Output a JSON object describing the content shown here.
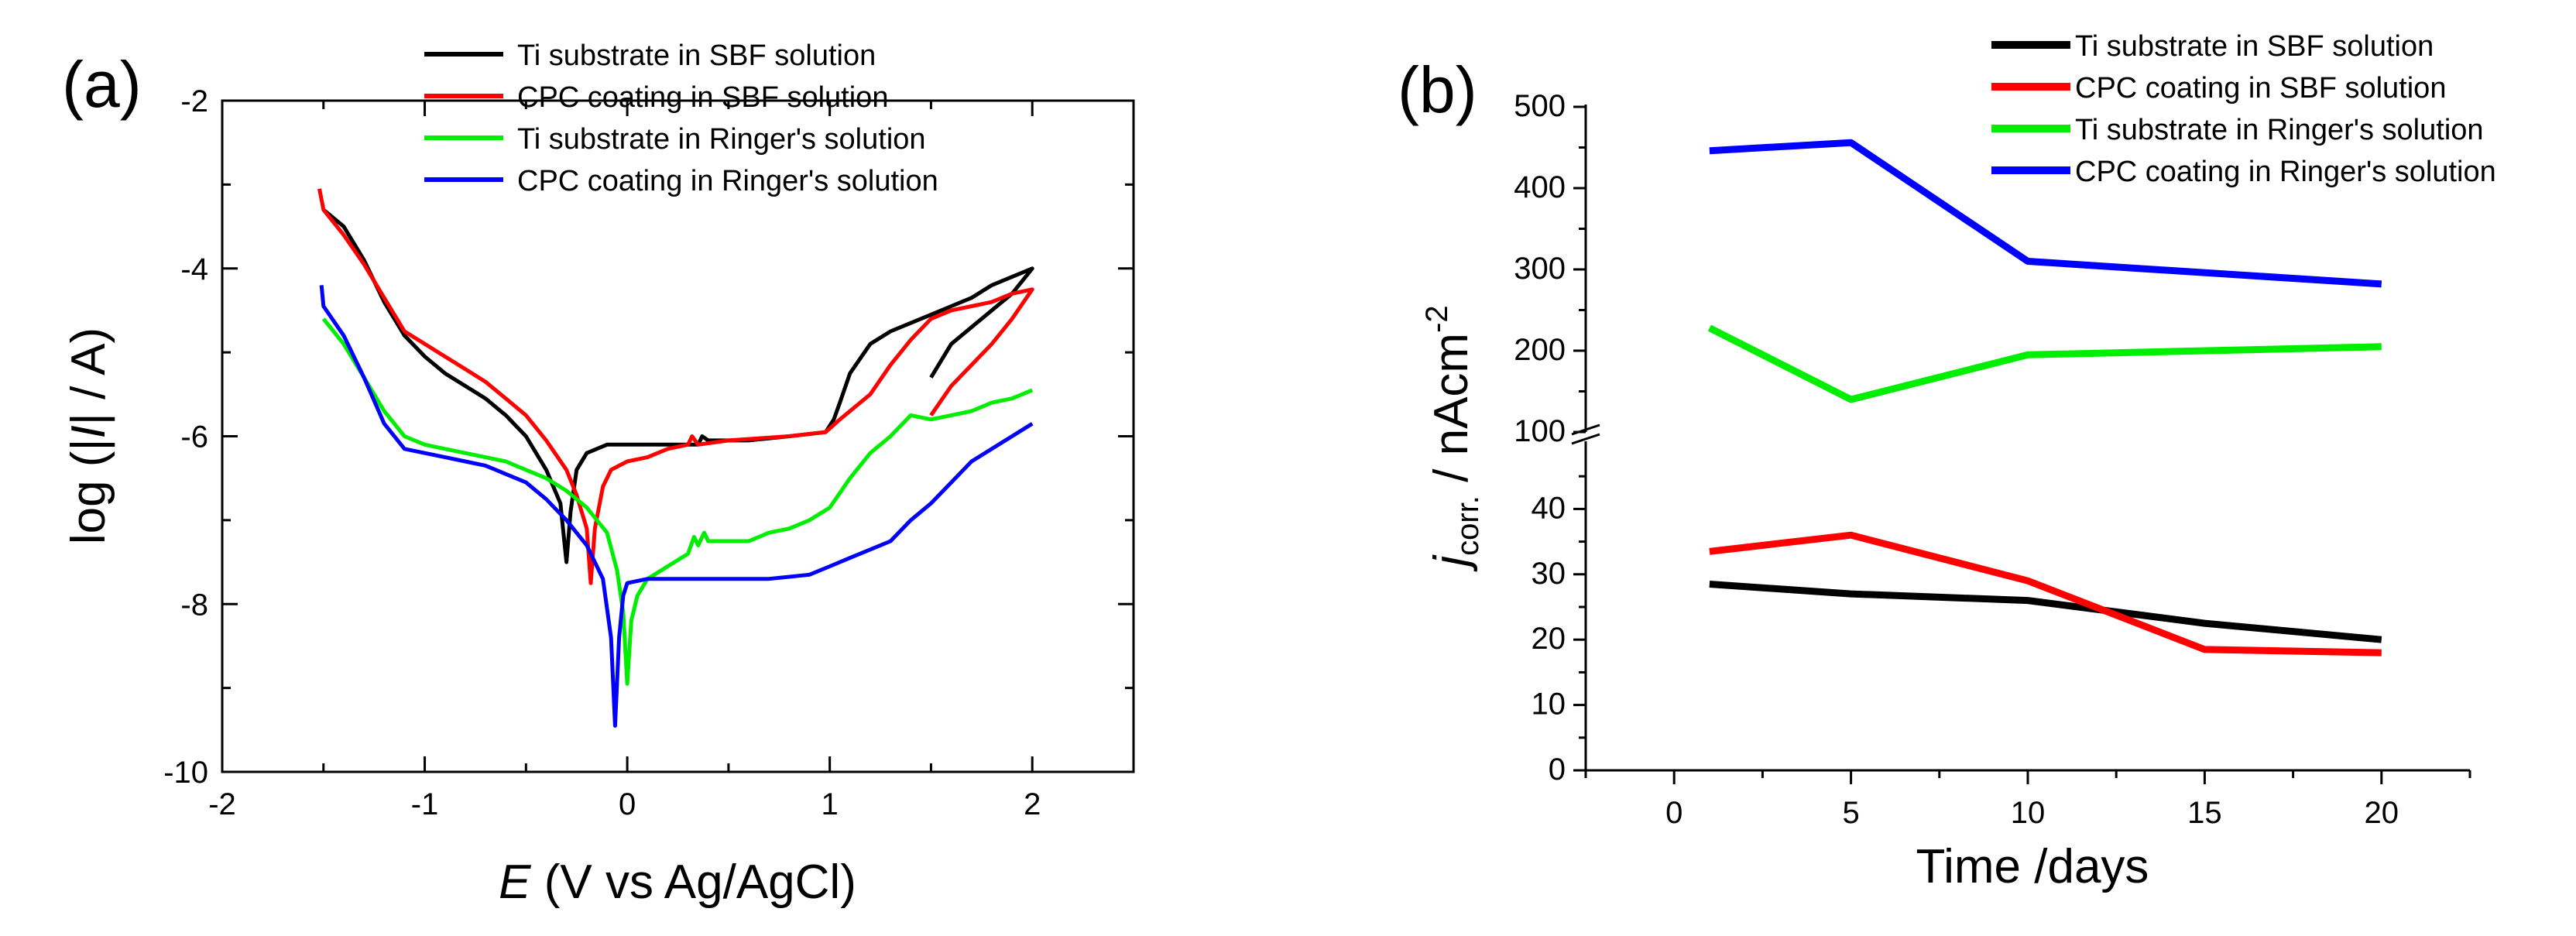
{
  "chart_data": [
    {
      "panel": "(a)",
      "type": "line",
      "xlabel_var": "E",
      "xlabel_rest": " (V vs Ag/AgCl)",
      "ylabel_pre": "log (|",
      "ylabel_var": "I",
      "ylabel_post": "| / A)",
      "xlim": [
        -2,
        2.5
      ],
      "ylim": [
        -10,
        -2
      ],
      "xticks": [
        -2,
        -1,
        0,
        1,
        2
      ],
      "xtick_labels": [
        "-2",
        "-1",
        "0",
        "1",
        "2"
      ],
      "yticks": [
        -10,
        -8,
        -6,
        -4,
        -2
      ],
      "ytick_labels": [
        "-10",
        "-8",
        "-6",
        "-4",
        "-2"
      ],
      "legend_position": "top-right",
      "series": [
        {
          "name": "Ti substrate in SBF solution",
          "color": "#000000",
          "points": [
            [
              -1.5,
              -3.3
            ],
            [
              -1.4,
              -3.5
            ],
            [
              -1.3,
              -3.9
            ],
            [
              -1.2,
              -4.4
            ],
            [
              -1.1,
              -4.8
            ],
            [
              -1.0,
              -5.05
            ],
            [
              -0.9,
              -5.25
            ],
            [
              -0.8,
              -5.4
            ],
            [
              -0.7,
              -5.55
            ],
            [
              -0.6,
              -5.75
            ],
            [
              -0.5,
              -6.0
            ],
            [
              -0.4,
              -6.4
            ],
            [
              -0.33,
              -6.8
            ],
            [
              -0.3,
              -7.5
            ],
            [
              -0.28,
              -6.9
            ],
            [
              -0.25,
              -6.4
            ],
            [
              -0.2,
              -6.2
            ],
            [
              -0.1,
              -6.1
            ],
            [
              0.0,
              -6.1
            ],
            [
              0.2,
              -6.1
            ],
            [
              0.35,
              -6.1
            ],
            [
              0.37,
              -6.0
            ],
            [
              0.4,
              -6.05
            ],
            [
              0.6,
              -6.05
            ],
            [
              0.8,
              -6.0
            ],
            [
              0.98,
              -5.95
            ],
            [
              1.02,
              -5.8
            ],
            [
              1.05,
              -5.6
            ],
            [
              1.1,
              -5.25
            ],
            [
              1.2,
              -4.9
            ],
            [
              1.3,
              -4.75
            ],
            [
              1.4,
              -4.65
            ],
            [
              1.5,
              -4.55
            ],
            [
              1.6,
              -4.45
            ],
            [
              1.7,
              -4.35
            ],
            [
              1.8,
              -4.2
            ],
            [
              1.9,
              -4.1
            ],
            [
              2.0,
              -4.0
            ],
            [
              1.9,
              -4.3
            ],
            [
              1.8,
              -4.5
            ],
            [
              1.7,
              -4.7
            ],
            [
              1.6,
              -4.9
            ],
            [
              1.5,
              -5.3
            ]
          ]
        },
        {
          "name": "CPC coating in SBF solution",
          "color": "#ff0000",
          "points": [
            [
              -1.52,
              -3.05
            ],
            [
              -1.5,
              -3.3
            ],
            [
              -1.4,
              -3.6
            ],
            [
              -1.3,
              -3.95
            ],
            [
              -1.2,
              -4.35
            ],
            [
              -1.1,
              -4.75
            ],
            [
              -1.0,
              -4.9
            ],
            [
              -0.9,
              -5.05
            ],
            [
              -0.8,
              -5.2
            ],
            [
              -0.7,
              -5.35
            ],
            [
              -0.6,
              -5.55
            ],
            [
              -0.5,
              -5.75
            ],
            [
              -0.4,
              -6.05
            ],
            [
              -0.3,
              -6.4
            ],
            [
              -0.25,
              -6.7
            ],
            [
              -0.2,
              -7.1
            ],
            [
              -0.18,
              -7.75
            ],
            [
              -0.16,
              -7.1
            ],
            [
              -0.12,
              -6.6
            ],
            [
              -0.08,
              -6.4
            ],
            [
              0.0,
              -6.3
            ],
            [
              0.1,
              -6.25
            ],
            [
              0.2,
              -6.15
            ],
            [
              0.3,
              -6.1
            ],
            [
              0.32,
              -6.0
            ],
            [
              0.35,
              -6.1
            ],
            [
              0.5,
              -6.05
            ],
            [
              0.8,
              -6.0
            ],
            [
              0.98,
              -5.95
            ],
            [
              1.05,
              -5.8
            ],
            [
              1.2,
              -5.5
            ],
            [
              1.3,
              -5.15
            ],
            [
              1.4,
              -4.85
            ],
            [
              1.5,
              -4.6
            ],
            [
              1.6,
              -4.5
            ],
            [
              1.7,
              -4.45
            ],
            [
              1.8,
              -4.4
            ],
            [
              1.9,
              -4.3
            ],
            [
              2.0,
              -4.25
            ],
            [
              1.9,
              -4.6
            ],
            [
              1.8,
              -4.9
            ],
            [
              1.7,
              -5.15
            ],
            [
              1.6,
              -5.4
            ],
            [
              1.5,
              -5.75
            ]
          ]
        },
        {
          "name": "Ti substrate in Ringer's solution",
          "color": "#00ee00",
          "points": [
            [
              -1.5,
              -4.6
            ],
            [
              -1.4,
              -4.9
            ],
            [
              -1.3,
              -5.3
            ],
            [
              -1.2,
              -5.7
            ],
            [
              -1.1,
              -6.0
            ],
            [
              -1.0,
              -6.1
            ],
            [
              -0.9,
              -6.15
            ],
            [
              -0.8,
              -6.2
            ],
            [
              -0.7,
              -6.25
            ],
            [
              -0.6,
              -6.3
            ],
            [
              -0.5,
              -6.4
            ],
            [
              -0.4,
              -6.5
            ],
            [
              -0.3,
              -6.65
            ],
            [
              -0.2,
              -6.85
            ],
            [
              -0.1,
              -7.15
            ],
            [
              -0.05,
              -7.6
            ],
            [
              -0.02,
              -8.1
            ],
            [
              0.0,
              -8.95
            ],
            [
              0.02,
              -8.2
            ],
            [
              0.05,
              -7.9
            ],
            [
              0.1,
              -7.7
            ],
            [
              0.2,
              -7.55
            ],
            [
              0.3,
              -7.4
            ],
            [
              0.33,
              -7.2
            ],
            [
              0.35,
              -7.3
            ],
            [
              0.38,
              -7.15
            ],
            [
              0.4,
              -7.25
            ],
            [
              0.5,
              -7.25
            ],
            [
              0.6,
              -7.25
            ],
            [
              0.7,
              -7.15
            ],
            [
              0.8,
              -7.1
            ],
            [
              0.9,
              -7.0
            ],
            [
              1.0,
              -6.85
            ],
            [
              1.1,
              -6.5
            ],
            [
              1.2,
              -6.2
            ],
            [
              1.3,
              -6.0
            ],
            [
              1.4,
              -5.75
            ],
            [
              1.5,
              -5.8
            ],
            [
              1.6,
              -5.75
            ],
            [
              1.7,
              -5.7
            ],
            [
              1.8,
              -5.6
            ],
            [
              1.9,
              -5.55
            ],
            [
              2.0,
              -5.45
            ]
          ]
        },
        {
          "name": "CPC coating in Ringer's solution",
          "color": "#0000ff",
          "points": [
            [
              -1.51,
              -4.2
            ],
            [
              -1.5,
              -4.45
            ],
            [
              -1.4,
              -4.8
            ],
            [
              -1.3,
              -5.3
            ],
            [
              -1.2,
              -5.85
            ],
            [
              -1.1,
              -6.15
            ],
            [
              -1.0,
              -6.2
            ],
            [
              -0.9,
              -6.25
            ],
            [
              -0.8,
              -6.3
            ],
            [
              -0.7,
              -6.35
            ],
            [
              -0.6,
              -6.45
            ],
            [
              -0.5,
              -6.55
            ],
            [
              -0.4,
              -6.75
            ],
            [
              -0.3,
              -7.0
            ],
            [
              -0.2,
              -7.3
            ],
            [
              -0.12,
              -7.7
            ],
            [
              -0.08,
              -8.4
            ],
            [
              -0.06,
              -9.45
            ],
            [
              -0.04,
              -8.4
            ],
            [
              -0.02,
              -7.9
            ],
            [
              0.0,
              -7.75
            ],
            [
              0.1,
              -7.7
            ],
            [
              0.3,
              -7.7
            ],
            [
              0.5,
              -7.7
            ],
            [
              0.7,
              -7.7
            ],
            [
              0.9,
              -7.65
            ],
            [
              1.0,
              -7.55
            ],
            [
              1.1,
              -7.45
            ],
            [
              1.3,
              -7.25
            ],
            [
              1.4,
              -7.0
            ],
            [
              1.5,
              -6.8
            ],
            [
              1.6,
              -6.55
            ],
            [
              1.7,
              -6.3
            ],
            [
              1.8,
              -6.15
            ],
            [
              1.9,
              -6.0
            ],
            [
              2.0,
              -5.85
            ]
          ]
        }
      ]
    },
    {
      "panel": "(b)",
      "type": "line",
      "xlabel": "Time /days",
      "ylabel_var": "j",
      "ylabel_sub": "corr.",
      "ylabel_mid": " / nAcm",
      "ylabel_sup": "-2",
      "xlim": [
        -2.5,
        22.5
      ],
      "ylim_lower": [
        0,
        50
      ],
      "ylim_upper": [
        100,
        500
      ],
      "xticks": [
        0,
        5,
        10,
        15,
        20
      ],
      "xtick_labels": [
        "0",
        "5",
        "10",
        "15",
        "20"
      ],
      "yticks_lower": [
        0,
        10,
        20,
        30,
        40
      ],
      "ytick_labels_lower": [
        "0",
        "10",
        "20",
        "30",
        "40"
      ],
      "yticks_upper": [
        100,
        200,
        300,
        400,
        500
      ],
      "ytick_labels_upper": [
        "100",
        "200",
        "300",
        "400",
        "500"
      ],
      "legend_position": "top-right",
      "series": [
        {
          "name": "Ti substrate in SBF solution",
          "color": "#000000",
          "x": [
            1,
            5,
            10,
            15,
            20
          ],
          "values": [
            28.5,
            27,
            26,
            22.5,
            20
          ]
        },
        {
          "name": "CPC coating in SBF solution",
          "color": "#ff0000",
          "x": [
            1,
            5,
            10,
            15,
            20
          ],
          "values": [
            33.5,
            36,
            29,
            18.5,
            18
          ]
        },
        {
          "name": "Ti substrate in Ringer's solution",
          "color": "#00ee00",
          "x": [
            1,
            5,
            10,
            20
          ],
          "values": [
            228,
            140,
            195,
            205
          ]
        },
        {
          "name": "CPC coating in Ringer's solution",
          "color": "#0000ff",
          "x": [
            1,
            5,
            10,
            20
          ],
          "values": [
            446,
            456,
            310,
            282
          ]
        }
      ]
    }
  ]
}
